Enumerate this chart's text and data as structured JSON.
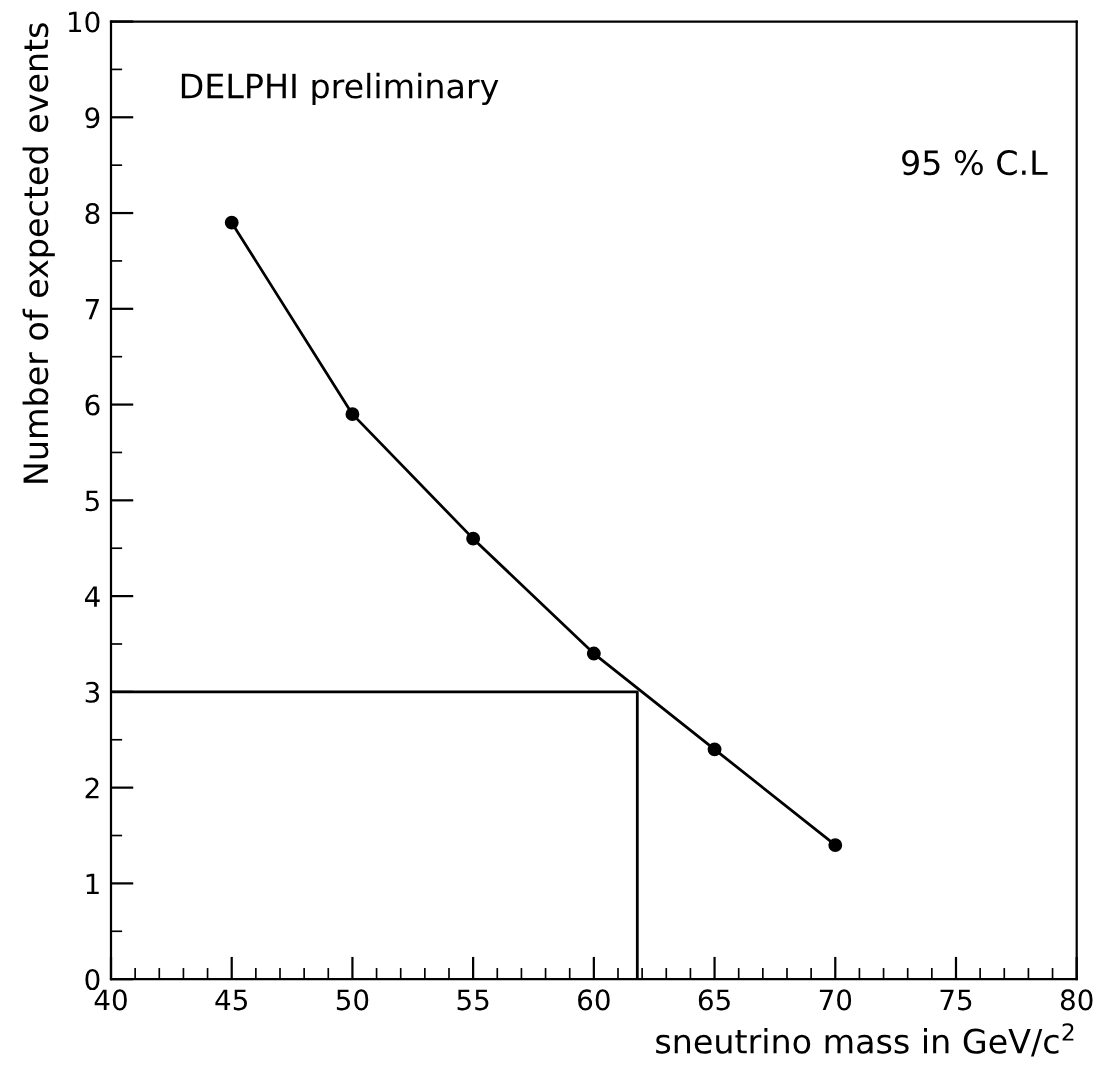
{
  "chart_data": {
    "type": "line",
    "xlabel": "sneutrino mass in GeV/c$^{2}$",
    "ylabel": "Number of expected events",
    "annotations": [
      "DELPHI preliminary",
      "95 % C.L"
    ],
    "series": [
      {
        "x": [
          45,
          50,
          55,
          60,
          65,
          70
        ],
        "values": [
          7.9,
          5.9,
          4.6,
          3.4,
          2.4,
          1.4
        ],
        "color": "#000000",
        "marker": "circle"
      },
      {
        "x": [
          40,
          61.8,
          61.8
        ],
        "values": [
          3,
          3,
          0
        ],
        "color": "#000000",
        "marker": "none"
      }
    ],
    "xlim": [
      40,
      80
    ],
    "ylim": [
      0,
      10
    ],
    "xticks": [
      40,
      45,
      50,
      55,
      60,
      65,
      70,
      75,
      80
    ],
    "yticks": [
      0,
      1,
      2,
      3,
      4,
      5,
      6,
      7,
      8,
      9,
      10
    ],
    "grid": false,
    "legend": false
  }
}
